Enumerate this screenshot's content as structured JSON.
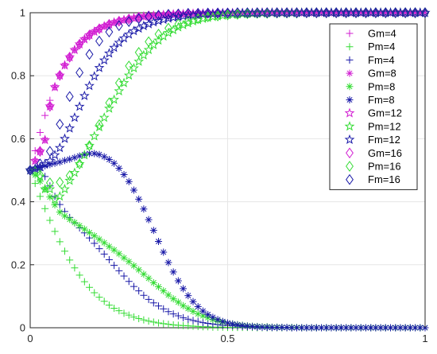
{
  "chart_data": {
    "type": "scatter",
    "grid": true,
    "legend_position": "top-right",
    "xlim": [
      0,
      1
    ],
    "ylim": [
      0,
      1
    ],
    "x_ticks": [
      "0",
      "0.5",
      "1"
    ],
    "y_ticks": [
      "0",
      "0.2",
      "0.4",
      "0.6",
      "0.8",
      "1"
    ],
    "x": [
      0,
      0.0125,
      0.025,
      0.0375,
      0.05,
      0.0625,
      0.075,
      0.0875,
      0.1,
      0.1125,
      0.125,
      0.1375,
      0.15,
      0.1625,
      0.175,
      0.1875,
      0.2,
      0.2125,
      0.225,
      0.2375,
      0.25,
      0.2625,
      0.275,
      0.2875,
      0.3,
      0.3125,
      0.325,
      0.3375,
      0.35,
      0.3625,
      0.375,
      0.3875,
      0.4,
      0.4125,
      0.425,
      0.4375,
      0.45,
      0.4625,
      0.475,
      0.4875,
      0.5,
      0.5125,
      0.525,
      0.5375,
      0.55,
      0.5625,
      0.575,
      0.5875,
      0.6,
      0.6125,
      0.625,
      0.6375,
      0.65,
      0.6625,
      0.675,
      0.6875,
      0.7,
      0.7125,
      0.725,
      0.7375,
      0.75,
      0.7625,
      0.775,
      0.7875,
      0.8,
      0.8125,
      0.825,
      0.8375,
      0.85,
      0.8625,
      0.875,
      0.8875,
      0.9,
      0.9125,
      0.925,
      0.9375,
      0.95,
      0.9625,
      0.975,
      0.9875,
      1
    ],
    "series": [
      {
        "name": "Gm=4",
        "color": "#d21ed2",
        "marker": "plus",
        "step": 1,
        "values": [
          0.5,
          0.562,
          0.62,
          0.674,
          0.722,
          0.764,
          0.801,
          0.833,
          0.859,
          0.882,
          0.9,
          0.916,
          0.929,
          0.94,
          0.949,
          0.957,
          0.963,
          0.969,
          0.973,
          0.977,
          0.98,
          0.983,
          0.986,
          0.988,
          0.99,
          0.991,
          0.992,
          0.993,
          0.994,
          0.995,
          0.996,
          0.996,
          0.997,
          0.997,
          0.998,
          0.998,
          0.998,
          0.998,
          0.999,
          0.999,
          0.999,
          0.999,
          0.999,
          0.999,
          0.999,
          0.999,
          1,
          1,
          1,
          1,
          1,
          1,
          1,
          1,
          1,
          1,
          1,
          1,
          1,
          1,
          1,
          1,
          1,
          1,
          1,
          1,
          1,
          1,
          1,
          1,
          1,
          1,
          1,
          1,
          1,
          1,
          1,
          1,
          1,
          1,
          1
        ]
      },
      {
        "name": "Pm=4",
        "color": "#34dc34",
        "marker": "plus",
        "step": 1,
        "values": [
          0.5,
          0.458,
          0.417,
          0.378,
          0.341,
          0.306,
          0.273,
          0.243,
          0.215,
          0.19,
          0.167,
          0.146,
          0.128,
          0.111,
          0.097,
          0.084,
          0.072,
          0.062,
          0.054,
          0.046,
          0.04,
          0.034,
          0.029,
          0.025,
          0.021,
          0.018,
          0.015,
          0.013,
          0.011,
          0.009,
          0.008,
          0.007,
          0.006,
          0.005,
          0.004,
          0.003,
          0.003,
          0.002,
          0.002,
          0.002,
          0.001,
          0.001,
          0.001,
          0.001,
          0.001,
          0.001,
          0,
          0,
          0,
          0,
          0,
          0,
          0,
          0,
          0,
          0,
          0,
          0,
          0,
          0,
          0,
          0,
          0,
          0,
          0,
          0,
          0,
          0,
          0,
          0,
          0,
          0,
          0,
          0,
          0,
          0,
          0,
          0,
          0,
          0,
          0
        ]
      },
      {
        "name": "Fm=4",
        "color": "#1a1aa8",
        "marker": "plus",
        "step": 1,
        "values": [
          0.5,
          0.508,
          0.5,
          0.48,
          0.45,
          0.417,
          0.391,
          0.369,
          0.35,
          0.333,
          0.317,
          0.301,
          0.285,
          0.268,
          0.251,
          0.234,
          0.216,
          0.198,
          0.181,
          0.164,
          0.147,
          0.131,
          0.117,
          0.103,
          0.09,
          0.079,
          0.069,
          0.06,
          0.051,
          0.044,
          0.038,
          0.032,
          0.027,
          0.023,
          0.02,
          0.016,
          0.014,
          0.012,
          0.01,
          0.008,
          0.007,
          0.006,
          0.005,
          0.004,
          0.003,
          0.003,
          0.002,
          0.002,
          0.001,
          0.001,
          0.001,
          0.001,
          0,
          0,
          0,
          0,
          0,
          0,
          0,
          0,
          0,
          0,
          0,
          0,
          0,
          0,
          0,
          0,
          0,
          0,
          0,
          0,
          0,
          0,
          0,
          0,
          0,
          0,
          0,
          0,
          0
        ]
      },
      {
        "name": "Gm=8",
        "color": "#d21ed2",
        "marker": "asterisk",
        "step": 1,
        "values": [
          0.5,
          0.53,
          0.56,
          0.596,
          0.703,
          0.764,
          0.801,
          0.833,
          0.859,
          0.882,
          0.9,
          0.916,
          0.929,
          0.94,
          0.949,
          0.957,
          0.963,
          0.969,
          0.973,
          0.977,
          0.98,
          0.983,
          0.986,
          0.988,
          0.99,
          0.991,
          0.992,
          0.993,
          0.994,
          0.995,
          0.996,
          0.996,
          0.997,
          0.997,
          0.998,
          0.998,
          0.998,
          0.998,
          0.999,
          0.999,
          0.999,
          0.999,
          0.999,
          0.999,
          0.999,
          0.999,
          1,
          1,
          1,
          1,
          1,
          1,
          1,
          1,
          1,
          1,
          1,
          1,
          1,
          1,
          1,
          1,
          1,
          1,
          1,
          1,
          1,
          1,
          1,
          1,
          1,
          1,
          1,
          1,
          1,
          1,
          1,
          1,
          1,
          1,
          1
        ]
      },
      {
        "name": "Pm=8",
        "color": "#34dc34",
        "marker": "asterisk",
        "step": 1,
        "values": [
          0.5,
          0.485,
          0.465,
          0.44,
          0.415,
          0.39,
          0.367,
          0.355,
          0.344,
          0.334,
          0.324,
          0.313,
          0.302,
          0.292,
          0.281,
          0.27,
          0.258,
          0.247,
          0.235,
          0.222,
          0.21,
          0.197,
          0.184,
          0.17,
          0.157,
          0.143,
          0.13,
          0.117,
          0.104,
          0.092,
          0.081,
          0.07,
          0.061,
          0.052,
          0.044,
          0.038,
          0.032,
          0.026,
          0.022,
          0.018,
          0.015,
          0.012,
          0.01,
          0.008,
          0.006,
          0.005,
          0.004,
          0.003,
          0.003,
          0.002,
          0.002,
          0.001,
          0.001,
          0.001,
          0.001,
          0,
          0,
          0,
          0,
          0,
          0,
          0,
          0,
          0,
          0,
          0,
          0,
          0,
          0,
          0,
          0,
          0,
          0,
          0,
          0,
          0,
          0,
          0,
          0,
          0,
          0
        ]
      },
      {
        "name": "Fm=8",
        "color": "#1a1aa8",
        "marker": "asterisk",
        "step": 1,
        "values": [
          0.5,
          0.505,
          0.51,
          0.514,
          0.518,
          0.522,
          0.526,
          0.531,
          0.535,
          0.54,
          0.545,
          0.55,
          0.553,
          0.553,
          0.55,
          0.543,
          0.534,
          0.522,
          0.506,
          0.486,
          0.464,
          0.437,
          0.408,
          0.377,
          0.343,
          0.309,
          0.274,
          0.24,
          0.207,
          0.177,
          0.149,
          0.124,
          0.102,
          0.083,
          0.067,
          0.053,
          0.042,
          0.033,
          0.026,
          0.02,
          0.015,
          0.012,
          0.009,
          0.007,
          0.005,
          0.004,
          0.003,
          0.002,
          0.002,
          0.001,
          0.001,
          0.001,
          0.001,
          0,
          0,
          0,
          0,
          0,
          0,
          0,
          0,
          0,
          0,
          0,
          0,
          0,
          0,
          0,
          0,
          0,
          0,
          0,
          0,
          0,
          0,
          0,
          0,
          0,
          0,
          0,
          0
        ]
      },
      {
        "name": "Gm=12",
        "color": "#d21ed2",
        "marker": "star",
        "step": 1,
        "values": [
          0.5,
          0.53,
          0.56,
          0.596,
          0.703,
          0.764,
          0.801,
          0.833,
          0.859,
          0.882,
          0.9,
          0.916,
          0.929,
          0.94,
          0.949,
          0.957,
          0.963,
          0.969,
          0.973,
          0.977,
          0.98,
          0.983,
          0.986,
          0.988,
          0.99,
          0.991,
          0.992,
          0.993,
          0.994,
          0.995,
          0.996,
          0.996,
          0.997,
          0.997,
          0.998,
          0.998,
          0.998,
          0.998,
          0.999,
          0.999,
          0.999,
          0.999,
          0.999,
          0.999,
          0.999,
          0.999,
          1,
          1,
          1,
          1,
          1,
          1,
          1,
          1,
          1,
          1,
          1,
          1,
          1,
          1,
          1,
          1,
          1,
          1,
          1,
          1,
          1,
          1,
          1,
          1,
          1,
          1,
          1,
          1,
          1,
          1,
          1,
          1,
          1,
          1,
          1
        ]
      },
      {
        "name": "Pm=12",
        "color": "#34dc34",
        "marker": "star",
        "step": 1,
        "values": [
          0.5,
          0.5,
          0.48,
          0.44,
          0.44,
          0.407,
          0.417,
          0.44,
          0.467,
          0.492,
          0.52,
          0.548,
          0.578,
          0.608,
          0.637,
          0.667,
          0.696,
          0.724,
          0.751,
          0.777,
          0.801,
          0.824,
          0.845,
          0.865,
          0.882,
          0.898,
          0.912,
          0.925,
          0.936,
          0.945,
          0.954,
          0.961,
          0.967,
          0.973,
          0.977,
          0.981,
          0.984,
          0.987,
          0.989,
          0.991,
          0.993,
          0.994,
          0.995,
          0.996,
          0.997,
          0.997,
          0.998,
          0.998,
          0.999,
          0.999,
          0.999,
          0.999,
          0.999,
          0.999,
          1,
          1,
          1,
          1,
          1,
          1,
          1,
          1,
          1,
          1,
          1,
          1,
          1,
          1,
          1,
          1,
          1,
          1,
          1,
          1,
          1,
          1,
          1,
          1,
          1,
          1,
          1
        ]
      },
      {
        "name": "Fm=12",
        "color": "#1a1aa8",
        "marker": "star",
        "step": 1,
        "values": [
          0.5,
          0.505,
          0.51,
          0.52,
          0.53,
          0.548,
          0.571,
          0.6,
          0.633,
          0.667,
          0.702,
          0.736,
          0.768,
          0.798,
          0.825,
          0.849,
          0.871,
          0.889,
          0.905,
          0.919,
          0.931,
          0.942,
          0.95,
          0.958,
          0.964,
          0.97,
          0.974,
          0.978,
          0.982,
          0.985,
          0.987,
          0.989,
          0.991,
          0.992,
          0.994,
          0.995,
          0.996,
          0.996,
          0.997,
          0.998,
          0.998,
          0.998,
          0.999,
          0.999,
          0.999,
          0.999,
          0.999,
          1,
          1,
          1,
          1,
          1,
          1,
          1,
          1,
          1,
          1,
          1,
          1,
          1,
          1,
          1,
          1,
          1,
          1,
          1,
          1,
          1,
          1,
          1,
          1,
          1,
          1,
          1,
          1,
          1,
          1,
          1,
          1,
          1,
          1
        ]
      },
      {
        "name": "Gm=16",
        "color": "#d21ed2",
        "marker": "diamond",
        "step": 2,
        "values": [
          0.5,
          0.53,
          0.56,
          0.596,
          0.703,
          0.764,
          0.801,
          0.833,
          0.859,
          0.882,
          0.9,
          0.916,
          0.929,
          0.94,
          0.949,
          0.957,
          0.963,
          0.969,
          0.973,
          0.977,
          0.98,
          0.983,
          0.986,
          0.988,
          0.99,
          0.991,
          0.992,
          0.993,
          0.994,
          0.995,
          0.996,
          0.996,
          0.997,
          0.997,
          0.998,
          0.998,
          0.998,
          0.998,
          0.999,
          0.999,
          0.999,
          0.999,
          0.999,
          0.999,
          0.999,
          0.999,
          1,
          1,
          1,
          1,
          1,
          1,
          1,
          1,
          1,
          1,
          1,
          1,
          1,
          1,
          1,
          1,
          1,
          1,
          1,
          1,
          1,
          1,
          1,
          1,
          1,
          1,
          1,
          1,
          1,
          1,
          1,
          1,
          1,
          1,
          1
        ]
      },
      {
        "name": "Pm=16",
        "color": "#34dc34",
        "marker": "diamond",
        "step": 2,
        "values": [
          0.5,
          0.497,
          0.485,
          0.47,
          0.46,
          0.46,
          0.462,
          0.47,
          0.483,
          0.5,
          0.52,
          0.548,
          0.578,
          0.611,
          0.645,
          0.68,
          0.714,
          0.746,
          0.777,
          0.805,
          0.831,
          0.854,
          0.874,
          0.892,
          0.908,
          0.921,
          0.932,
          0.942,
          0.951,
          0.958,
          0.964,
          0.97,
          0.974,
          0.978,
          0.981,
          0.984,
          0.987,
          0.989,
          0.99,
          0.992,
          0.993,
          0.994,
          0.995,
          0.996,
          0.997,
          0.997,
          0.998,
          0.998,
          0.998,
          0.999,
          0.999,
          0.999,
          0.999,
          0.999,
          0.999,
          1,
          1,
          1,
          1,
          1,
          1,
          1,
          1,
          1,
          1,
          1,
          1,
          1,
          1,
          1,
          1,
          1,
          1,
          1,
          1,
          1,
          1,
          1,
          1,
          1,
          1
        ]
      },
      {
        "name": "Fm=16",
        "color": "#1a1aa8",
        "marker": "diamond",
        "step": 2,
        "values": [
          0.5,
          0.51,
          0.52,
          0.54,
          0.56,
          0.6,
          0.646,
          0.691,
          0.734,
          0.774,
          0.81,
          0.841,
          0.868,
          0.891,
          0.91,
          0.926,
          0.939,
          0.95,
          0.959,
          0.966,
          0.972,
          0.977,
          0.981,
          0.985,
          0.988,
          0.99,
          0.992,
          0.993,
          0.995,
          0.996,
          0.996,
          0.997,
          0.998,
          0.998,
          0.998,
          0.999,
          0.999,
          0.999,
          0.999,
          0.999,
          0.999,
          1,
          1,
          1,
          1,
          1,
          1,
          1,
          1,
          1,
          1,
          1,
          1,
          1,
          1,
          1,
          1,
          1,
          1,
          1,
          1,
          1,
          1,
          1,
          1,
          1,
          1,
          1,
          1,
          1,
          1,
          1,
          1,
          1,
          1,
          1,
          1,
          1,
          1,
          1,
          1
        ]
      }
    ]
  }
}
